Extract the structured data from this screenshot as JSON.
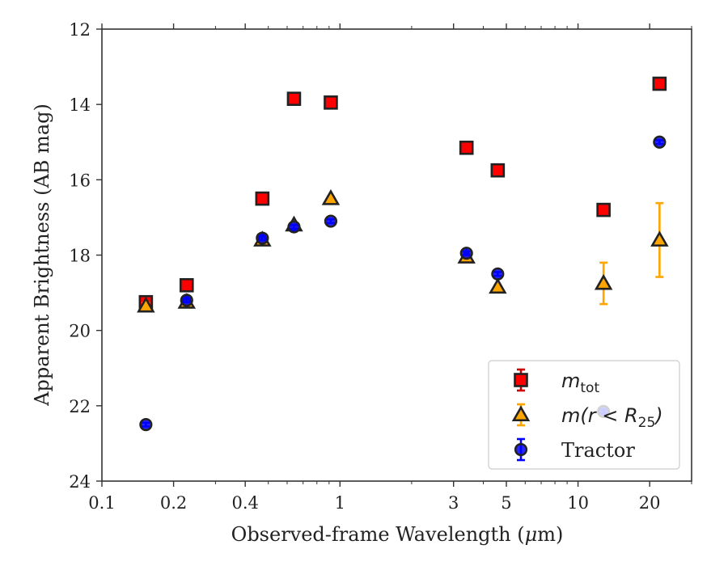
{
  "chart_data": {
    "type": "scatter",
    "xscale": "log",
    "yinverted": true,
    "xlim": [
      0.1,
      30
    ],
    "ylim": [
      24,
      12
    ],
    "xlabel_prefix": "Observed-frame Wavelength (",
    "xlabel_mu": "μ",
    "xlabel_suffix": "m)",
    "ylabel": "Apparent Brightness (AB mag)",
    "x_ticks": [
      {
        "value": 0.1,
        "label": "0.1"
      },
      {
        "value": 0.2,
        "label": "0.2"
      },
      {
        "value": 0.4,
        "label": "0.4"
      },
      {
        "value": 1,
        "label": "1"
      },
      {
        "value": 3,
        "label": "3"
      },
      {
        "value": 5,
        "label": "5"
      },
      {
        "value": 10,
        "label": "10"
      },
      {
        "value": 20,
        "label": "20"
      }
    ],
    "y_ticks": [
      {
        "value": 12,
        "label": "12"
      },
      {
        "value": 14,
        "label": "14"
      },
      {
        "value": 16,
        "label": "16"
      },
      {
        "value": 18,
        "label": "18"
      },
      {
        "value": 20,
        "label": "20"
      },
      {
        "value": 22,
        "label": "22"
      },
      {
        "value": 24,
        "label": "24"
      }
    ],
    "legend_position": "lower-right",
    "series": [
      {
        "key": "mtot",
        "legend_main": "m",
        "legend_sub": "tot",
        "marker": "square",
        "color": "#ff0000",
        "edge": "#222222",
        "error_color": "#cc0000",
        "points": [
          {
            "x": 0.153,
            "y": 19.25,
            "err": 0.1
          },
          {
            "x": 0.227,
            "y": 18.8,
            "err": 0.05
          },
          {
            "x": 0.472,
            "y": 16.5,
            "err": 0.05
          },
          {
            "x": 0.641,
            "y": 13.85,
            "err": 0.05
          },
          {
            "x": 0.915,
            "y": 13.95,
            "err": 0.05
          },
          {
            "x": 3.4,
            "y": 15.15,
            "err": 0.05
          },
          {
            "x": 4.6,
            "y": 15.75,
            "err": 0.05
          },
          {
            "x": 12.8,
            "y": 16.8,
            "err": 0.05
          },
          {
            "x": 22.0,
            "y": 13.45,
            "err": 0.05
          }
        ]
      },
      {
        "key": "mr25",
        "legend_main": "m(r < R",
        "legend_sub": "25",
        "legend_close": ")",
        "marker": "triangle",
        "color": "#ffa500",
        "edge": "#222222",
        "error_color": "#ffa500",
        "points": [
          {
            "x": 0.153,
            "y": 19.35,
            "err": 0.08
          },
          {
            "x": 0.227,
            "y": 19.25,
            "err": 0.05
          },
          {
            "x": 0.472,
            "y": 17.6,
            "err": 0.05
          },
          {
            "x": 0.641,
            "y": 17.2,
            "err": 0.05
          },
          {
            "x": 0.915,
            "y": 16.5,
            "err": 0.05
          },
          {
            "x": 3.4,
            "y": 18.05,
            "err": 0.05
          },
          {
            "x": 4.6,
            "y": 18.85,
            "err": 0.05
          },
          {
            "x": 12.8,
            "y": 18.75,
            "err": 0.55
          },
          {
            "x": 22.0,
            "y": 17.6,
            "err": 0.98
          }
        ]
      },
      {
        "key": "tractor",
        "legend_main": "Tractor",
        "marker": "circle",
        "color": "#0000ff",
        "edge": "#222222",
        "error_color": "#0000ff",
        "points": [
          {
            "x": 0.153,
            "y": 22.5,
            "err": 0.05
          },
          {
            "x": 0.227,
            "y": 19.2,
            "err": 0.05
          },
          {
            "x": 0.472,
            "y": 17.55,
            "err": 0.05
          },
          {
            "x": 0.641,
            "y": 17.25,
            "err": 0.05
          },
          {
            "x": 0.915,
            "y": 17.1,
            "err": 0.05
          },
          {
            "x": 3.4,
            "y": 17.95,
            "err": 0.05
          },
          {
            "x": 4.6,
            "y": 18.5,
            "err": 0.05
          },
          {
            "x": 12.8,
            "y": 22.15,
            "err": 0.05
          },
          {
            "x": 22.0,
            "y": 15.0,
            "err": 0.05
          }
        ]
      }
    ]
  }
}
